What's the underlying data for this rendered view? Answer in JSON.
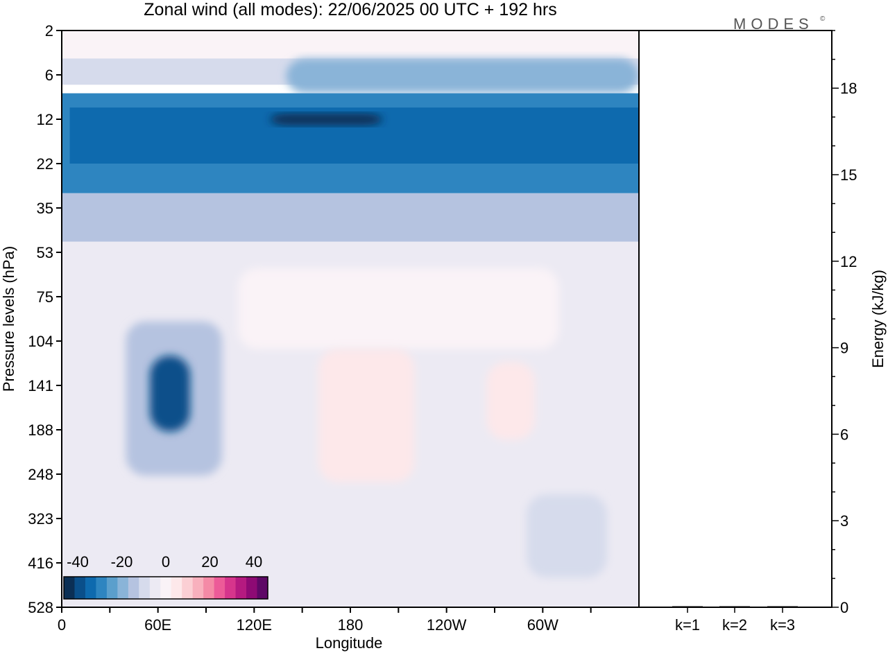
{
  "logo": {
    "text": "MODES",
    "mark": "©"
  },
  "chart_data": [
    {
      "type": "heatmap",
      "title": "Zonal wind (all modes):  22/06/2025  00 UTC  + 192 hrs",
      "xlabel": "Longitude",
      "ylabel": "Pressure levels (hPa)",
      "x_ticks": [
        "0",
        "60E",
        "120E",
        "180",
        "120W",
        "60W"
      ],
      "y_ticks": [
        "2",
        "6",
        "12",
        "22",
        "35",
        "53",
        "75",
        "104",
        "141",
        "188",
        "248",
        "323",
        "416",
        "528"
      ],
      "colorbar": {
        "ticks": [
          "-40",
          "-20",
          "0",
          "20",
          "40"
        ],
        "range": [
          -40,
          40
        ],
        "colors": [
          "#0b2f55",
          "#0a4f8a",
          "#0e6aae",
          "#2e85c0",
          "#5b9fcc",
          "#8ab4d8",
          "#b5c3e0",
          "#d6dbec",
          "#eceaf3",
          "#faf3f7",
          "#fde8ea",
          "#fbcfd4",
          "#f8b0bd",
          "#f48aa6",
          "#ec5b98",
          "#d6358c",
          "#b51a80",
          "#8e0a74",
          "#5e0866"
        ]
      },
      "regions": [
        {
          "lon": [
            0,
            360
          ],
          "level": [
            2,
            4
          ],
          "value": 2
        },
        {
          "lon": [
            0,
            360
          ],
          "level": [
            4,
            7
          ],
          "value": -8
        },
        {
          "lon": [
            140,
            360
          ],
          "level": [
            4,
            8
          ],
          "value": -20
        },
        {
          "lon": [
            0,
            360
          ],
          "level": [
            8,
            30
          ],
          "value": -28
        },
        {
          "lon": [
            5,
            360
          ],
          "level": [
            10,
            22
          ],
          "value": -33
        },
        {
          "lon": [
            130,
            200
          ],
          "level": [
            11,
            13
          ],
          "value": -40
        },
        {
          "lon": [
            0,
            360
          ],
          "level": [
            30,
            48
          ],
          "value": -12
        },
        {
          "lon": [
            0,
            360
          ],
          "level": [
            48,
            528
          ],
          "value": -3
        },
        {
          "lon": [
            110,
            310
          ],
          "level": [
            60,
            110
          ],
          "value": 2
        },
        {
          "lon": [
            160,
            220
          ],
          "level": [
            110,
            260
          ],
          "value": 4
        },
        {
          "lon": [
            265,
            295
          ],
          "level": [
            120,
            200
          ],
          "value": 5
        },
        {
          "lon": [
            40,
            100
          ],
          "level": [
            90,
            250
          ],
          "value": -15
        },
        {
          "lon": [
            55,
            80
          ],
          "level": [
            115,
            190
          ],
          "value": -35
        },
        {
          "lon": [
            290,
            340
          ],
          "level": [
            280,
            450
          ],
          "value": -10
        }
      ]
    },
    {
      "type": "bar",
      "categories": [
        "k=1",
        "k=2",
        "k=3"
      ],
      "values": [
        0.03,
        0.02,
        0.01
      ],
      "ylabel": "Energy (kJ/kg)",
      "ylim": [
        0,
        20
      ],
      "y_ticks": [
        "0",
        "3",
        "6",
        "9",
        "12",
        "15",
        "18"
      ]
    }
  ]
}
